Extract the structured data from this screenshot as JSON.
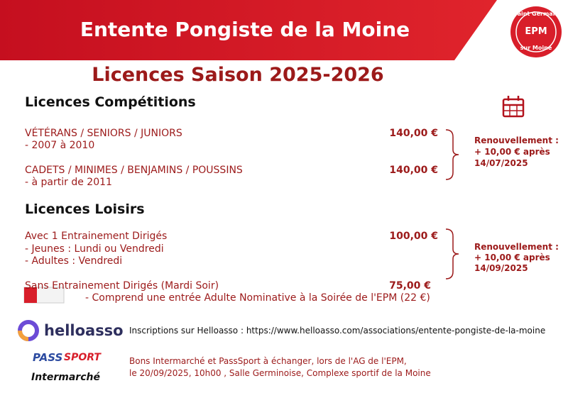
{
  "header": {
    "title": "Entente Pongiste de la Moine"
  },
  "logo": {
    "top": "Saint Germain",
    "center": "EPM",
    "bottom": "sur Moine"
  },
  "heading": "Licences Saison 2025-2026",
  "competitions": {
    "title": "Licences Compétitions",
    "items": [
      {
        "label": "VÉTÉRANS / SENIORS / JUNIORS",
        "details": [
          "- 2007 à 2010"
        ],
        "price": "140,00 €"
      },
      {
        "label": "CADETS / MINIMES / BENJAMINS / POUSSINS",
        "details": [
          "- à partir de 2011"
        ],
        "price": "140,00 €"
      }
    ],
    "renewal": [
      "Renouvellement :",
      "+ 10,00 € après",
      "14/07/2025"
    ]
  },
  "loisirs": {
    "title": "Licences Loisirs",
    "items": [
      {
        "label": "Avec 1 Entrainement Dirigés",
        "details": [
          "- Jeunes : Lundi ou Vendredi",
          "- Adultes : Vendredi"
        ],
        "price": "100,00 €"
      },
      {
        "label": "Sans Entrainement Dirigés (Mardi Soir)",
        "details": [
          "- Comprend une entrée Adulte Nominative à la Soirée de l'EPM (22 €)"
        ],
        "price": "75,00 €"
      }
    ],
    "renewal": [
      "Renouvellement :",
      "+ 10,00 € après",
      "14/09/2025"
    ]
  },
  "footer": {
    "helloasso": {
      "brand": "helloasso",
      "text": "Inscriptions sur Helloasso : https://www.helloasso.com/associations/entente-pongiste-de-la-moine"
    },
    "passsport": {
      "brand_pass": "PASS",
      "brand_sport": "SPORT",
      "brand_store": "Intermarché",
      "lines": [
        "Bons Intermarché et PassSport à échanger, lors de l'AG de l'EPM,",
        "le 20/09/2025, 10h00 , Salle Germinoise, Complexe sportif de la Moine"
      ]
    }
  }
}
